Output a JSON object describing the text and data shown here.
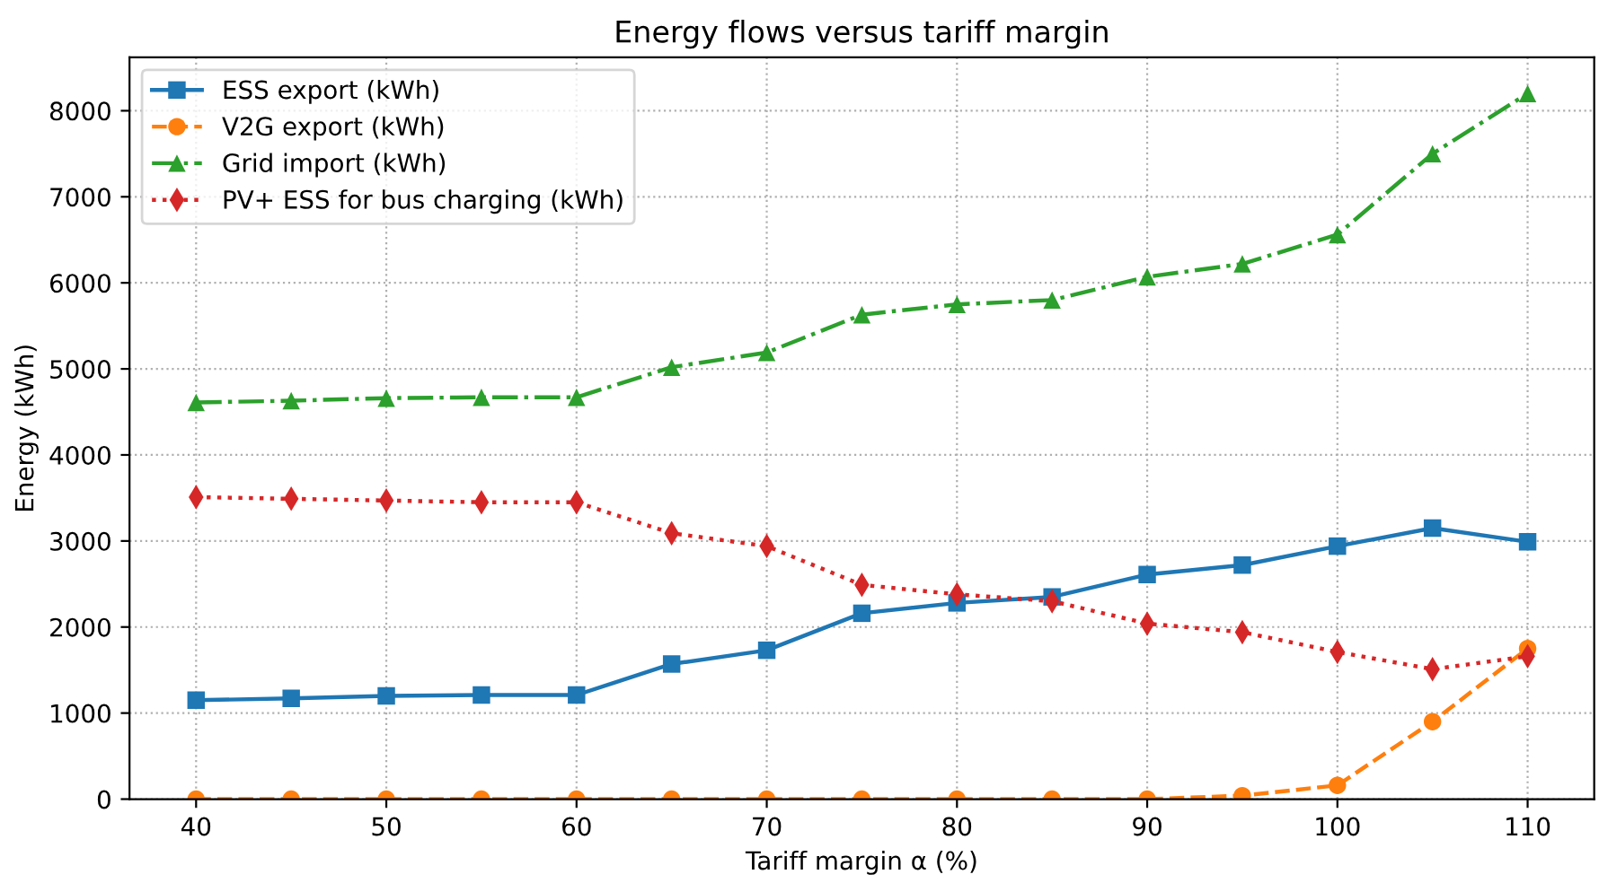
{
  "chart_data": {
    "type": "line",
    "title": "Energy flows versus tariff margin",
    "xlabel": "Tariff margin α (%)",
    "ylabel": "Energy (kWh)",
    "x": [
      40,
      45,
      50,
      55,
      60,
      65,
      70,
      75,
      80,
      85,
      90,
      95,
      100,
      105,
      110
    ],
    "series": [
      {
        "name": "ESS export (kWh)",
        "color": "#1f77b4",
        "marker": "square",
        "line_style": "solid",
        "values": [
          1150,
          1170,
          1200,
          1210,
          1210,
          1570,
          1730,
          2160,
          2280,
          2350,
          2610,
          2720,
          2940,
          3150,
          2990
        ]
      },
      {
        "name": "V2G export (kWh)",
        "color": "#ff7f0e",
        "marker": "circle",
        "line_style": "dashed",
        "values": [
          0,
          0,
          0,
          0,
          0,
          0,
          0,
          0,
          0,
          0,
          0,
          40,
          160,
          900,
          1750
        ]
      },
      {
        "name": "Grid import (kWh)",
        "color": "#2ca02c",
        "marker": "triangle",
        "line_style": "dashdot",
        "values": [
          4610,
          4630,
          4660,
          4670,
          4670,
          5020,
          5190,
          5630,
          5750,
          5800,
          6070,
          6220,
          6560,
          7500,
          8200
        ]
      },
      {
        "name": "PV+ ESS for bus charging (kWh)",
        "color": "#d62728",
        "marker": "diamond",
        "line_style": "dotted",
        "values": [
          3510,
          3490,
          3470,
          3450,
          3450,
          3090,
          2940,
          2490,
          2380,
          2300,
          2040,
          1940,
          1710,
          1510,
          1660
        ]
      }
    ],
    "xlim": [
      36.5,
      113.5
    ],
    "xticks": [
      40,
      50,
      60,
      70,
      80,
      90,
      100,
      110
    ],
    "ylim": [
      0,
      8620
    ],
    "yticks": [
      0,
      1000,
      2000,
      3000,
      4000,
      5000,
      6000,
      7000,
      8000
    ],
    "grid": true,
    "legend": "top left"
  }
}
